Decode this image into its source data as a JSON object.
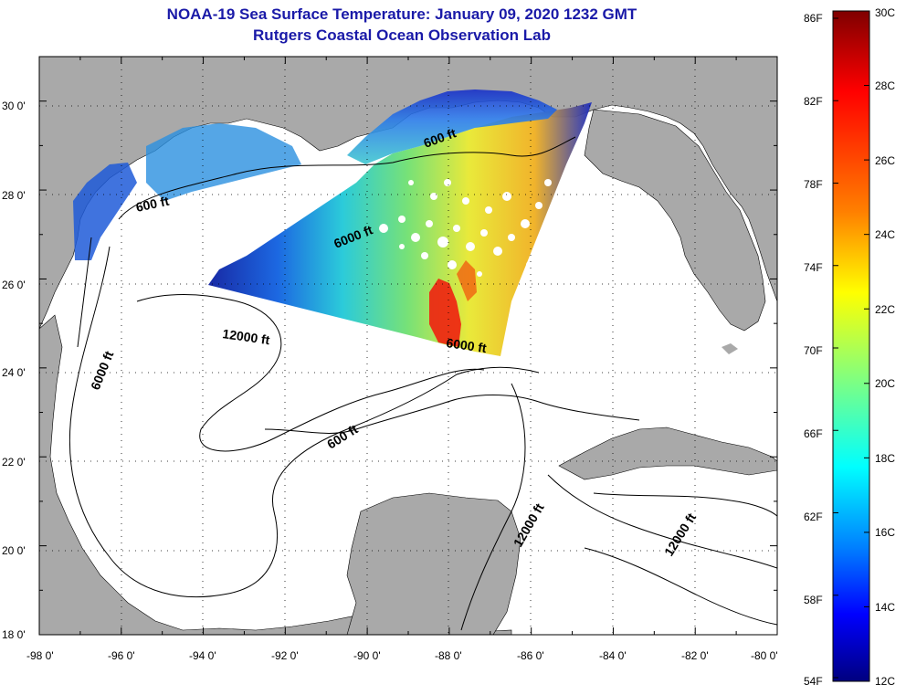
{
  "header": {
    "title": "NOAA-19 Sea Surface Temperature:  January 09, 2020 1232 GMT",
    "subtitle": "Rutgers Coastal Ocean Observation Lab"
  },
  "map": {
    "region": "Gulf of Mexico",
    "lon_range": [
      -98,
      -80
    ],
    "lat_range": [
      18,
      31
    ],
    "lon_ticks": [
      "-98 0'",
      "-96 0'",
      "-94 0'",
      "-92 0'",
      "-90 0'",
      "-88 0'",
      "-86 0'",
      "-84 0'",
      "-82 0'",
      "-80 0'"
    ],
    "lat_ticks": [
      "18 0'",
      "20 0'",
      "22 0'",
      "24 0'",
      "26 0'",
      "28 0'",
      "30 0'"
    ],
    "grid": "dotted",
    "land_color": "#a9a9a9",
    "ocean_color": "#ffffff",
    "contour_labels": [
      "600 ft",
      "6000 ft",
      "600 ft",
      "12000 ft",
      "6000 ft",
      "6000 ft",
      "600 ft",
      "12000 ft",
      "12000 ft"
    ]
  },
  "colorbar": {
    "fahrenheit_labels": [
      "86F",
      "82F",
      "78F",
      "74F",
      "70F",
      "66F",
      "62F",
      "58F",
      "54F"
    ],
    "celsius_labels": [
      "30C",
      "28C",
      "26C",
      "24C",
      "22C",
      "20C",
      "18C",
      "16C",
      "14C",
      "12C"
    ],
    "range_c": [
      12,
      30
    ],
    "colormap": [
      "#00007f",
      "#0000ff",
      "#007fff",
      "#00ffff",
      "#7fff7f",
      "#ffff00",
      "#ff7f00",
      "#ff0000",
      "#7f0000"
    ]
  }
}
